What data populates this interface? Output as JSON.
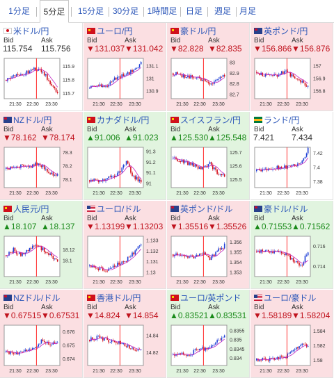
{
  "tabs": [
    "1分足",
    "5分足",
    "15分足",
    "30分足",
    "1時間足",
    "日足",
    "週足",
    "月足"
  ],
  "active_tab": 1,
  "labels": {
    "bid": "Bid",
    "ask": "Ask"
  },
  "x_ticks": [
    "21:30",
    "22:30",
    "23:30"
  ],
  "colors": {
    "down_bg": "#fbdfe2",
    "up_bg": "#e1f4df",
    "down": "#c0131e",
    "up": "#1a8a1a",
    "candle_up": "#1f3fd6",
    "candle_down": "#d4101c",
    "ma": "#c020c0",
    "marker": "#ff3030"
  },
  "pairs": [
    {
      "name": "米ドル/円",
      "flag": "flag-jp",
      "dir": "neutral",
      "bid": "115.754",
      "ask": "115.756",
      "yticks": [
        "115.9",
        "115.8",
        "115.7"
      ],
      "ylim": [
        115.66,
        115.96
      ],
      "trend": [
        115.8,
        115.82,
        115.84,
        115.86,
        115.88,
        115.86,
        115.78,
        115.7
      ]
    },
    {
      "name": "ユーロ/円",
      "flag": "flag-red",
      "dir": "down",
      "bid": "▼131.037",
      "ask": "▼131.042",
      "yticks": [
        "131.1",
        "131",
        "130.9"
      ],
      "ylim": [
        130.84,
        131.16
      ],
      "trend": [
        130.92,
        130.95,
        130.93,
        130.98,
        131.02,
        131.03,
        131.07,
        131.12
      ]
    },
    {
      "name": "豪ドル/円",
      "flag": "flag-red",
      "dir": "down",
      "bid": "▼82.828",
      "ask": "▼82.835",
      "yticks": [
        "83",
        "82.9",
        "82.8",
        "82.7"
      ],
      "ylim": [
        82.66,
        83.04
      ],
      "trend": [
        82.9,
        82.88,
        82.87,
        82.86,
        82.84,
        82.79,
        82.83,
        82.88
      ]
    },
    {
      "name": "英ポンド/円",
      "flag": "flag-blue",
      "dir": "down",
      "bid": "▼156.866",
      "ask": "▼156.876",
      "yticks": [
        "157",
        "156.9",
        "156.8"
      ],
      "ylim": [
        156.74,
        157.06
      ],
      "trend": [
        156.95,
        156.93,
        156.92,
        156.93,
        156.96,
        156.91,
        156.88,
        156.84
      ]
    },
    {
      "name": "NZドル/円",
      "flag": "flag-blue",
      "dir": "down",
      "bid": "▼78.162",
      "ask": "▼78.174",
      "yticks": [
        "78.3",
        "78.2",
        "78.1"
      ],
      "ylim": [
        78.04,
        78.34
      ],
      "trend": [
        78.18,
        78.19,
        78.2,
        78.19,
        78.22,
        78.2,
        78.14,
        78.13
      ]
    },
    {
      "name": "カナダドル/円",
      "flag": "flag-red",
      "dir": "up",
      "bid": "▲91.006",
      "ask": "▲91.023",
      "yticks": [
        "91.3",
        "91.2",
        "91.1",
        "91"
      ],
      "ylim": [
        90.96,
        91.34
      ],
      "trend": [
        91.03,
        91.02,
        91.04,
        91.06,
        91.1,
        91.2,
        91.06,
        91.02
      ]
    },
    {
      "name": "スイスフラン/円",
      "flag": "flag-red",
      "dir": "up",
      "bid": "▲125.530",
      "ask": "▲125.548",
      "yticks": [
        "125.7",
        "125.6",
        "125.5"
      ],
      "ylim": [
        125.44,
        125.74
      ],
      "trend": [
        125.66,
        125.64,
        125.62,
        125.6,
        125.58,
        125.62,
        125.55,
        125.52
      ]
    },
    {
      "name": "ランド/円",
      "flag": "flag-green",
      "dir": "neutral",
      "bid": "7.421",
      "ask": "7.434",
      "yticks": [
        "7.42",
        "7.4",
        "7.38"
      ],
      "ylim": [
        7.372,
        7.428
      ],
      "trend": [
        7.395,
        7.397,
        7.399,
        7.4,
        7.401,
        7.402,
        7.406,
        7.425
      ]
    },
    {
      "name": "人民元/円",
      "flag": "flag-red",
      "dir": "up",
      "bid": "▲18.107",
      "ask": "▲18.137",
      "yticks": [
        "18.12",
        "18.1"
      ],
      "ylim": [
        18.07,
        18.145
      ],
      "trend": [
        18.11,
        18.12,
        18.11,
        18.12,
        18.13,
        18.12,
        18.11,
        18.1
      ]
    },
    {
      "name": "ユーロ/ドル",
      "flag": "flag-stripe",
      "dir": "down",
      "bid": "▼1.13199",
      "ask": "▼1.13203",
      "yticks": [
        "1.133",
        "1.132",
        "1.131",
        "1.13"
      ],
      "ylim": [
        1.1296,
        1.1334
      ],
      "trend": [
        1.1306,
        1.1304,
        1.1302,
        1.1305,
        1.1308,
        1.1312,
        1.1318,
        1.1326
      ]
    },
    {
      "name": "英ポンド/ドル",
      "flag": "flag-blue",
      "dir": "down",
      "bid": "▼1.35516",
      "ask": "▼1.35526",
      "yticks": [
        "1.356",
        "1.355",
        "1.354",
        "1.353"
      ],
      "ylim": [
        1.3526,
        1.3566
      ],
      "trend": [
        1.3548,
        1.3546,
        1.3545,
        1.3546,
        1.3549,
        1.3544,
        1.3551,
        1.3557
      ]
    },
    {
      "name": "豪ドル/ドル",
      "flag": "flag-blue",
      "dir": "up",
      "bid": "▲0.71553",
      "ask": "▲0.71562",
      "yticks": [
        "0.716",
        "0.714"
      ],
      "ylim": [
        0.713,
        0.717
      ],
      "trend": [
        0.7155,
        0.7156,
        0.7155,
        0.7154,
        0.7153,
        0.7146,
        0.714,
        0.7155
      ]
    },
    {
      "name": "NZドル/ドル",
      "flag": "flag-blue",
      "dir": "down",
      "bid": "▼0.67515",
      "ask": "▼0.67531",
      "yticks": [
        "0.676",
        "0.675",
        "0.674"
      ],
      "ylim": [
        0.6735,
        0.6765
      ],
      "trend": [
        0.6745,
        0.6744,
        0.6745,
        0.6746,
        0.6748,
        0.6754,
        0.6751,
        0.6752
      ]
    },
    {
      "name": "香港ドル/円",
      "flag": "flag-red",
      "dir": "down",
      "bid": "▼14.824",
      "ask": "▼14.854",
      "yticks": [
        "14.84",
        "14.82"
      ],
      "ylim": [
        14.805,
        14.852
      ],
      "trend": [
        14.835,
        14.838,
        14.836,
        14.833,
        14.832,
        14.828,
        14.823,
        14.822
      ]
    },
    {
      "name": "ユーロ/英ポンド",
      "flag": "flag-red",
      "dir": "up",
      "bid": "▲0.83521",
      "ask": "▲0.83531",
      "yticks": [
        "0.8355",
        "0.835",
        "0.8345",
        "0.834"
      ],
      "ylim": [
        0.8336,
        0.8358
      ],
      "trend": [
        0.8342,
        0.8343,
        0.8341,
        0.8344,
        0.8345,
        0.8346,
        0.8349,
        0.8353
      ]
    },
    {
      "name": "ユーロ/豪ドル",
      "flag": "flag-stripe",
      "dir": "down",
      "bid": "▼1.58189",
      "ask": "▼1.58204",
      "yticks": [
        "1.584",
        "1.582",
        "1.58"
      ],
      "ylim": [
        1.5793,
        1.5848
      ],
      "trend": [
        1.58,
        1.5802,
        1.5801,
        1.5804,
        1.5806,
        1.5814,
        1.5822,
        1.5819
      ]
    }
  ]
}
